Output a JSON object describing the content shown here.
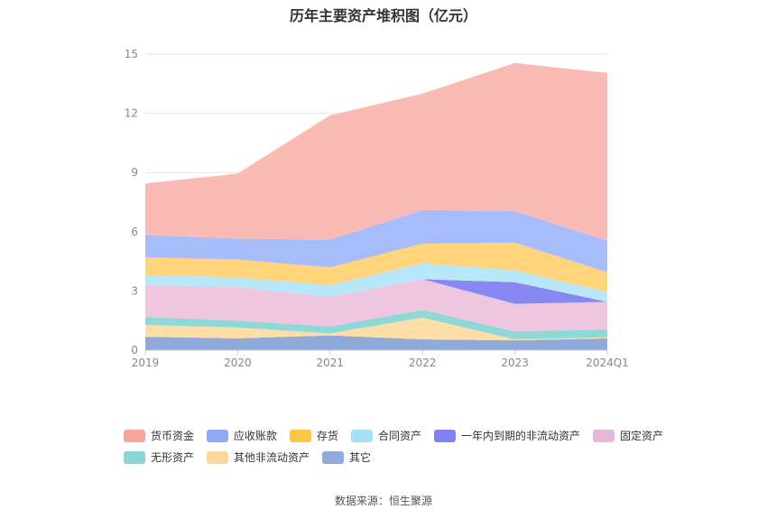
{
  "chart_data": {
    "type": "area",
    "stacked": true,
    "title": "历年主要资产堆积图（亿元）",
    "categories": [
      "2019",
      "2020",
      "2021",
      "2022",
      "2023",
      "2024Q1"
    ],
    "ylim": [
      0,
      15
    ],
    "yticks": [
      "0",
      "3",
      "6",
      "9",
      "12",
      "15"
    ],
    "grid": true,
    "legend_position": "bottom",
    "series": [
      {
        "name": "其它",
        "color": "#8fa9d9",
        "values": [
          0.68,
          0.6,
          0.75,
          0.55,
          0.5,
          0.6
        ]
      },
      {
        "name": "其他非流动资产",
        "color": "#ffdda6",
        "values": [
          0.6,
          0.55,
          0.1,
          1.1,
          0.05,
          0.05
        ]
      },
      {
        "name": "无形资产",
        "color": "#8fd8d8",
        "values": [
          0.4,
          0.35,
          0.35,
          0.4,
          0.4,
          0.4
        ]
      },
      {
        "name": "固定资产",
        "color": "#efc6df",
        "values": [
          1.62,
          1.7,
          1.5,
          1.55,
          1.4,
          1.4
        ]
      },
      {
        "name": "一年内到期的非流动资产",
        "color": "#8888f2",
        "values": [
          0.0,
          0.0,
          0.0,
          0.0,
          1.1,
          0.0
        ]
      },
      {
        "name": "合同资产",
        "color": "#b7e7f9",
        "values": [
          0.5,
          0.5,
          0.6,
          0.8,
          0.6,
          0.5
        ]
      },
      {
        "name": "存货",
        "color": "#ffd47a",
        "values": [
          0.9,
          0.9,
          0.9,
          1.0,
          1.4,
          1.0
        ]
      },
      {
        "name": "应收账款",
        "color": "#a7bdfb",
        "values": [
          1.15,
          1.05,
          1.4,
          1.7,
          1.6,
          1.6
        ]
      },
      {
        "name": "货币资金",
        "color": "#fabbb5",
        "values": [
          2.6,
          3.3,
          6.3,
          5.9,
          7.5,
          8.5
        ]
      }
    ]
  },
  "legend": {
    "items": [
      {
        "name": "货币资金",
        "color": "#f7a59c"
      },
      {
        "name": "应收账款",
        "color": "#8fa9f7"
      },
      {
        "name": "存货",
        "color": "#fcc542"
      },
      {
        "name": "合同资产",
        "color": "#a8e1f7"
      },
      {
        "name": "一年内到期的非流动资产",
        "color": "#8181f0"
      },
      {
        "name": "固定资产",
        "color": "#e8b6d6"
      },
      {
        "name": "无形资产",
        "color": "#8cd5d5"
      },
      {
        "name": "其他非流动资产",
        "color": "#ffd79d"
      },
      {
        "name": "其它",
        "color": "#8faadb"
      }
    ]
  },
  "footer": {
    "source": "数据来源：恒生聚源"
  }
}
